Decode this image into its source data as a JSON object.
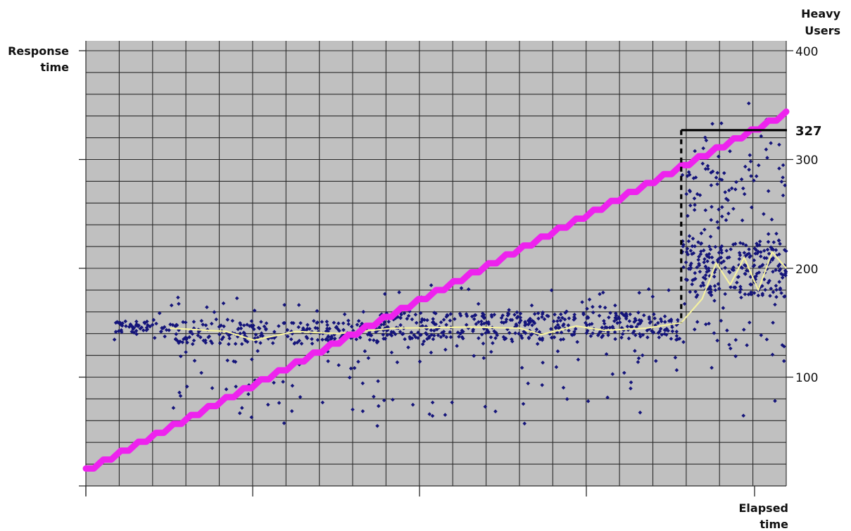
{
  "chart_data": {
    "type": "scatter",
    "left_axis_title": [
      "Response",
      "time"
    ],
    "right_axis_title": [
      "Heavy",
      "Users"
    ],
    "x_axis_title": [
      "Elapsed",
      "time"
    ],
    "right_axis_ticks": [
      {
        "value": 400,
        "label": "400"
      },
      {
        "value": 300,
        "label": "300"
      },
      {
        "value": 200,
        "label": "200"
      },
      {
        "value": 100,
        "label": "100"
      }
    ],
    "y_range": [
      0,
      400
    ],
    "x_range": [
      0,
      100
    ],
    "grid": true,
    "colors": {
      "plot_background": "#c0c0c0",
      "grid": "#2a2a2a",
      "users_line": "#ee22ee",
      "response_points": "#14147a",
      "moving_average": "#f6f2a0",
      "threshold": "#000000"
    },
    "threshold": {
      "value": 327,
      "label": "327",
      "x": 85
    },
    "series": [
      {
        "name": "",
        "kind": "heavy-users-staircase",
        "step_x": 2.5,
        "step_users": 8.2,
        "start_users": 16
      },
      {
        "name": "",
        "kind": "response-time-scatter",
        "phases": [
          {
            "x": [
              4,
              12
            ],
            "center": 146,
            "spread": 12
          },
          {
            "x": [
              12,
              42
            ],
            "center": 141,
            "spread": 24
          },
          {
            "x": [
              42,
              85
            ],
            "center": 147,
            "spread": 28
          },
          {
            "x": [
              85,
              100
            ],
            "center": 200,
            "spread": 60
          }
        ]
      },
      {
        "name": "",
        "kind": "moving-average",
        "profile": [
          {
            "x": 12,
            "y": 145
          },
          {
            "x": 20,
            "y": 142
          },
          {
            "x": 24,
            "y": 134
          },
          {
            "x": 30,
            "y": 142
          },
          {
            "x": 36,
            "y": 140
          },
          {
            "x": 44,
            "y": 145
          },
          {
            "x": 55,
            "y": 146
          },
          {
            "x": 62,
            "y": 145
          },
          {
            "x": 65,
            "y": 139
          },
          {
            "x": 70,
            "y": 147
          },
          {
            "x": 74,
            "y": 143
          },
          {
            "x": 80,
            "y": 145
          },
          {
            "x": 85,
            "y": 150
          },
          {
            "x": 88,
            "y": 172
          },
          {
            "x": 90,
            "y": 205
          },
          {
            "x": 92,
            "y": 185
          },
          {
            "x": 94,
            "y": 210
          },
          {
            "x": 96,
            "y": 180
          },
          {
            "x": 98,
            "y": 215
          },
          {
            "x": 100,
            "y": 200
          }
        ]
      }
    ]
  }
}
